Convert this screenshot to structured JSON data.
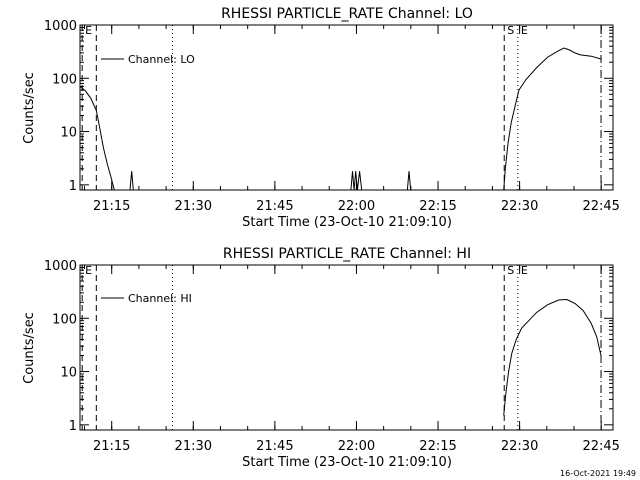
{
  "timestamp": "16-Oct-2021 19:49",
  "chart_data": [
    {
      "type": "line",
      "title": "RHESSI PARTICLE_RATE Channel: LO",
      "xlabel": "Start Time (23-Oct-10 21:09:10)",
      "ylabel": "Counts/sec",
      "y_scale": "log",
      "ylim": [
        0.8,
        1000
      ],
      "xlim_minutes": [
        0,
        98
      ],
      "xticks": [
        {
          "label": "21:15",
          "value": 5.83
        },
        {
          "label": "21:30",
          "value": 20.83
        },
        {
          "label": "21:45",
          "value": 35.83
        },
        {
          "label": "22:00",
          "value": 50.83
        },
        {
          "label": "22:15",
          "value": 65.83
        },
        {
          "label": "22:30",
          "value": 80.83
        },
        {
          "label": "22:45",
          "value": 95.83
        }
      ],
      "yticks": [
        {
          "label": "1",
          "value": 1
        },
        {
          "label": "10",
          "value": 10
        },
        {
          "label": "100",
          "value": 100
        },
        {
          "label": "1000",
          "value": 1000
        }
      ],
      "legend": {
        "label": "Channel: LO",
        "position": "top-left"
      },
      "markers": [
        {
          "label": "E",
          "x": 0.4,
          "style": "dash",
          "labeled": true
        },
        {
          "label": "",
          "x": 3.0,
          "style": "dash",
          "labeled": false
        },
        {
          "label": "",
          "x": 17.0,
          "style": "dot",
          "labeled": false
        },
        {
          "label": "S",
          "x": 78.0,
          "style": "dash",
          "labeled": true
        },
        {
          "label": "E",
          "x": 80.5,
          "style": "dot",
          "labeled": true
        },
        {
          "label": "",
          "x": 95.8,
          "style": "dashdot",
          "labeled": false
        }
      ],
      "series": [
        {
          "segments": [
            [
              [
                0,
                70
              ],
              [
                1,
                58
              ],
              [
                2,
                42
              ],
              [
                3,
                25
              ],
              [
                3.6,
                12
              ],
              [
                4.3,
                5
              ],
              [
                5,
                2.5
              ],
              [
                5.7,
                1.4
              ],
              [
                6.3,
                0.8
              ]
            ],
            [
              [
                9.2,
                0.8
              ],
              [
                9.5,
                1.8
              ],
              [
                9.8,
                0.8
              ]
            ],
            [
              [
                49.8,
                0.8
              ],
              [
                50.1,
                1.8
              ],
              [
                50.4,
                0.8
              ],
              [
                50.7,
                1.8
              ],
              [
                51.0,
                0.8
              ],
              [
                51.4,
                1.8
              ],
              [
                51.8,
                0.8
              ]
            ],
            [
              [
                60.2,
                0.8
              ],
              [
                60.5,
                1.8
              ],
              [
                60.8,
                0.8
              ]
            ],
            [
              [
                77.9,
                0.8
              ],
              [
                78.2,
                2
              ],
              [
                78.7,
                6
              ],
              [
                79.3,
                15
              ],
              [
                80,
                30
              ],
              [
                80.7,
                60
              ],
              [
                82,
                95
              ],
              [
                84,
                160
              ],
              [
                86,
                250
              ],
              [
                88,
                330
              ],
              [
                89,
                370
              ],
              [
                90,
                340
              ],
              [
                91,
                300
              ],
              [
                92,
                275
              ],
              [
                94,
                260
              ],
              [
                95.8,
                230
              ]
            ]
          ]
        }
      ]
    },
    {
      "type": "line",
      "title": "RHESSI PARTICLE_RATE Channel: HI",
      "xlabel": "Start Time (23-Oct-10 21:09:10)",
      "ylabel": "Counts/sec",
      "y_scale": "log",
      "ylim": [
        0.8,
        1000
      ],
      "xlim_minutes": [
        0,
        98
      ],
      "xticks": [
        {
          "label": "21:15",
          "value": 5.83
        },
        {
          "label": "21:30",
          "value": 20.83
        },
        {
          "label": "21:45",
          "value": 35.83
        },
        {
          "label": "22:00",
          "value": 50.83
        },
        {
          "label": "22:15",
          "value": 65.83
        },
        {
          "label": "22:30",
          "value": 80.83
        },
        {
          "label": "22:45",
          "value": 95.83
        }
      ],
      "yticks": [
        {
          "label": "1",
          "value": 1
        },
        {
          "label": "10",
          "value": 10
        },
        {
          "label": "100",
          "value": 100
        },
        {
          "label": "1000",
          "value": 1000
        }
      ],
      "legend": {
        "label": "Channel: HI",
        "position": "top-left"
      },
      "markers": [
        {
          "label": "E",
          "x": 0.4,
          "style": "dash",
          "labeled": true
        },
        {
          "label": "",
          "x": 3.0,
          "style": "dash",
          "labeled": false
        },
        {
          "label": "",
          "x": 17.0,
          "style": "dot",
          "labeled": false
        },
        {
          "label": "S",
          "x": 78.0,
          "style": "dash",
          "labeled": true
        },
        {
          "label": "E",
          "x": 80.5,
          "style": "dot",
          "labeled": true
        },
        {
          "label": "",
          "x": 95.8,
          "style": "dashdot",
          "labeled": false
        }
      ],
      "series": [
        {
          "segments": [
            [
              [
                77.9,
                1.5
              ],
              [
                78.3,
                4
              ],
              [
                78.8,
                10
              ],
              [
                79.4,
                22
              ],
              [
                80.2,
                40
              ],
              [
                81.2,
                65
              ],
              [
                82.5,
                90
              ],
              [
                84,
                130
              ],
              [
                86,
                180
              ],
              [
                88,
                220
              ],
              [
                89.5,
                225
              ],
              [
                91,
                190
              ],
              [
                92.5,
                140
              ],
              [
                94,
                80
              ],
              [
                95,
                45
              ],
              [
                95.8,
                20
              ]
            ]
          ]
        }
      ]
    }
  ]
}
